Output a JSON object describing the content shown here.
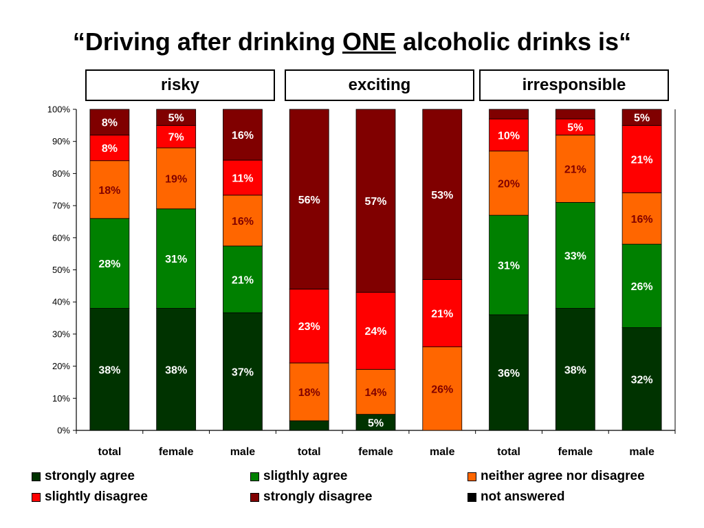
{
  "title": {
    "prefix": "“Driving after drinking ",
    "emphasis": "ONE",
    "suffix": " alcoholic drinks is“"
  },
  "chart_data": {
    "type": "bar",
    "stacked": true,
    "percent_stacked": true,
    "groups": [
      {
        "label": "risky",
        "categories": [
          "total",
          "female",
          "male"
        ]
      },
      {
        "label": "exciting",
        "categories": [
          "total",
          "female",
          "male"
        ]
      },
      {
        "label": "irresponsible",
        "categories": [
          "total",
          "female",
          "male"
        ]
      }
    ],
    "categories": [
      "total",
      "female",
      "male",
      "total",
      "female",
      "male",
      "total",
      "female",
      "male"
    ],
    "ylim": [
      0,
      100
    ],
    "yticks": [
      "0%",
      "10%",
      "20%",
      "30%",
      "40%",
      "50%",
      "60%",
      "70%",
      "80%",
      "90%",
      "100%"
    ],
    "grid": false,
    "legend_position": "bottom",
    "series": [
      {
        "name": "strongly agree",
        "color": "#003300",
        "values": [
          38,
          38,
          37,
          3,
          5,
          0,
          36,
          38,
          32
        ],
        "labels": [
          "38%",
          "38%",
          "37%",
          "",
          "5%",
          "",
          "36%",
          "38%",
          "32%"
        ]
      },
      {
        "name": "sligthly agree",
        "color": "#008000",
        "values": [
          28,
          31,
          21,
          0,
          0,
          0,
          31,
          33,
          26
        ],
        "labels": [
          "28%",
          "31%",
          "21%",
          "",
          "",
          "",
          "31%",
          "33%",
          "26%"
        ]
      },
      {
        "name": "neither agree nor disagree",
        "color": "#ff6600",
        "values": [
          18,
          19,
          16,
          18,
          14,
          26,
          20,
          21,
          16
        ],
        "labels": [
          "18%",
          "19%",
          "16%",
          "18%",
          "14%",
          "26%",
          "20%",
          "21%",
          "16%"
        ]
      },
      {
        "name": "slightly disagree",
        "color": "#ff0000",
        "values": [
          8,
          7,
          11,
          23,
          24,
          21,
          10,
          5,
          21
        ],
        "labels": [
          "8%",
          "7%",
          "11%",
          "23%",
          "24%",
          "21%",
          "10%",
          "5%",
          "21%"
        ]
      },
      {
        "name": "strongly disagree",
        "color": "#800000",
        "values": [
          8,
          5,
          16,
          56,
          57,
          53,
          3,
          3,
          5
        ],
        "labels": [
          "8%",
          "5%",
          "16%",
          "56%",
          "57%",
          "53%",
          "",
          "",
          "5%"
        ]
      },
      {
        "name": "not answered",
        "color": "#000000",
        "values": [
          0,
          0,
          0,
          0,
          0,
          0,
          0,
          0,
          0
        ],
        "labels": [
          "",
          "",
          "",
          "",
          "",
          "",
          "",
          "",
          ""
        ]
      }
    ]
  }
}
